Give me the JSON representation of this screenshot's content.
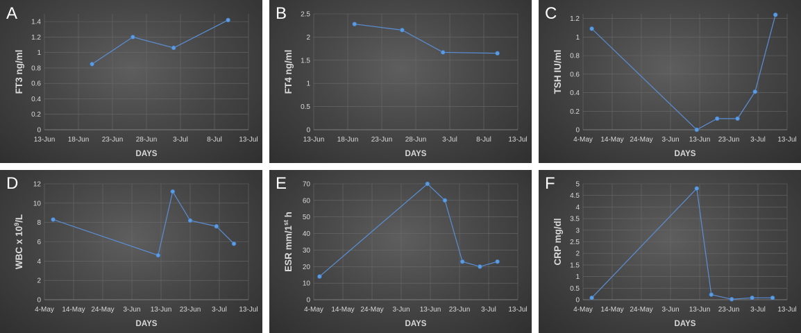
{
  "chart_data": [
    {
      "panel": "A",
      "type": "line",
      "xlabel": "DAYS",
      "ylabel": "FT3 ng/ml",
      "ylabel_sup": "",
      "ylabel_tail": "",
      "x_ticks": [
        "13-Jun",
        "18-Jun",
        "23-Jun",
        "28-Jun",
        "3-Jul",
        "8-Jul",
        "13-Jul"
      ],
      "xlim": [
        "2020-06-13",
        "2020-07-13"
      ],
      "y_ticks": [
        "0",
        "0.2",
        "0.4",
        "0.6",
        "0.8",
        "1",
        "1.2",
        "1.4"
      ],
      "ylim": [
        0,
        1.5
      ],
      "series": [
        {
          "x": [
            "2020-06-20",
            "2020-06-26",
            "2020-07-02",
            "2020-07-10"
          ],
          "y": [
            0.85,
            1.2,
            1.06,
            1.42
          ]
        }
      ]
    },
    {
      "panel": "B",
      "type": "line",
      "xlabel": "DAYS",
      "ylabel": "FT4 ng/ml",
      "ylabel_sup": "",
      "ylabel_tail": "",
      "x_ticks": [
        "13-Jun",
        "18-Jun",
        "23-Jun",
        "28-Jun",
        "3-Jul",
        "8-Jul",
        "13-Jul"
      ],
      "xlim": [
        "2020-06-13",
        "2020-07-13"
      ],
      "y_ticks": [
        "0",
        "0.5",
        "1",
        "1.5",
        "2",
        "2.5"
      ],
      "ylim": [
        0,
        2.5
      ],
      "series": [
        {
          "x": [
            "2020-06-19",
            "2020-06-26",
            "2020-07-02",
            "2020-07-10"
          ],
          "y": [
            2.28,
            2.15,
            1.67,
            1.65
          ]
        }
      ]
    },
    {
      "panel": "C",
      "type": "line",
      "xlabel": "DAYS",
      "ylabel": "TSH IU/ml",
      "ylabel_sup": "",
      "ylabel_tail": "",
      "x_ticks": [
        "4-May",
        "14-May",
        "24-May",
        "3-Jun",
        "13-Jun",
        "23-Jun",
        "3-Jul",
        "13-Jul"
      ],
      "xlim": [
        "2020-05-04",
        "2020-07-13"
      ],
      "y_ticks": [
        "0",
        "0.2",
        "0.4",
        "0.6",
        "0.8",
        "1",
        "1.2"
      ],
      "ylim": [
        0,
        1.25
      ],
      "series": [
        {
          "x": [
            "2020-05-07",
            "2020-06-12",
            "2020-06-19",
            "2020-06-26",
            "2020-07-02",
            "2020-07-09"
          ],
          "y": [
            1.09,
            0.0,
            0.12,
            0.12,
            0.41,
            1.24
          ]
        }
      ]
    },
    {
      "panel": "D",
      "type": "line",
      "xlabel": "DAYS",
      "ylabel": "WBC x 10",
      "ylabel_sup": "9",
      "ylabel_tail": "/L",
      "x_ticks": [
        "4-May",
        "14-May",
        "24-May",
        "3-Jun",
        "13-Jun",
        "23-Jun",
        "3-Jul",
        "13-Jul"
      ],
      "xlim": [
        "2020-05-04",
        "2020-07-13"
      ],
      "y_ticks": [
        "0",
        "2",
        "4",
        "6",
        "8",
        "10",
        "12"
      ],
      "ylim": [
        0,
        12
      ],
      "series": [
        {
          "x": [
            "2020-05-07",
            "2020-06-12",
            "2020-06-17",
            "2020-06-23",
            "2020-07-02",
            "2020-07-08"
          ],
          "y": [
            8.3,
            4.6,
            11.2,
            8.2,
            7.6,
            5.8
          ]
        }
      ]
    },
    {
      "panel": "E",
      "type": "line",
      "xlabel": "DAYS",
      "ylabel": "ESR mm/1",
      "ylabel_sup": "st",
      "ylabel_tail": " h",
      "x_ticks": [
        "4-May",
        "14-May",
        "24-May",
        "3-Jun",
        "13-Jun",
        "23-Jun",
        "3-Jul",
        "13-Jul"
      ],
      "xlim": [
        "2020-05-04",
        "2020-07-13"
      ],
      "y_ticks": [
        "0",
        "10",
        "20",
        "30",
        "40",
        "50",
        "60",
        "70"
      ],
      "ylim": [
        0,
        70
      ],
      "series": [
        {
          "x": [
            "2020-05-06",
            "2020-06-12",
            "2020-06-18",
            "2020-06-24",
            "2020-06-30",
            "2020-07-06"
          ],
          "y": [
            14,
            70,
            60,
            23,
            20,
            23
          ]
        }
      ]
    },
    {
      "panel": "F",
      "type": "line",
      "xlabel": "DAYS",
      "ylabel": "CRP mg/dl",
      "ylabel_sup": "",
      "ylabel_tail": "",
      "x_ticks": [
        "4-May",
        "14-May",
        "24-May",
        "3-Jun",
        "13-Jun",
        "23-Jun",
        "3-Jul",
        "13-Jul"
      ],
      "xlim": [
        "2020-05-04",
        "2020-07-13"
      ],
      "y_ticks": [
        "0",
        "0.5",
        "1",
        "1.5",
        "2",
        "2.5",
        "3",
        "3.5",
        "4",
        "4.5",
        "5"
      ],
      "ylim": [
        0,
        5
      ],
      "series": [
        {
          "x": [
            "2020-05-07",
            "2020-06-12",
            "2020-06-17",
            "2020-06-24",
            "2020-07-01",
            "2020-07-08"
          ],
          "y": [
            0.08,
            4.8,
            0.22,
            0.02,
            0.08,
            0.08
          ]
        }
      ]
    }
  ]
}
